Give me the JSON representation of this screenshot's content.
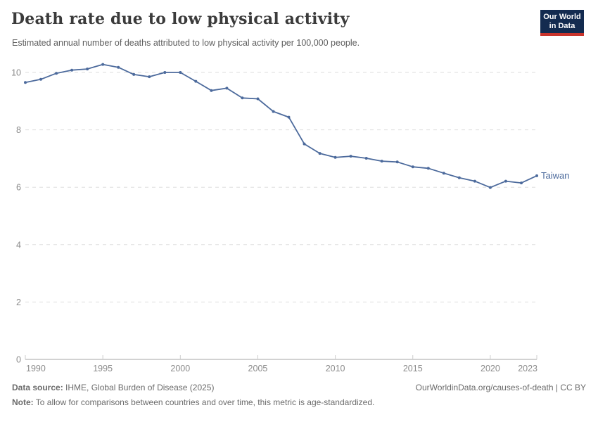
{
  "header": {
    "title": "Death rate due to low physical activity",
    "subtitle": "Estimated annual number of deaths attributed to low physical activity per 100,000 people.",
    "logo": {
      "line1": "Our World",
      "line2": "in Data"
    }
  },
  "chart_data": {
    "type": "line",
    "title": "Death rate due to low physical activity",
    "xlabel": "",
    "ylabel": "",
    "x": [
      1990,
      1991,
      1992,
      1993,
      1994,
      1995,
      1996,
      1997,
      1998,
      1999,
      2000,
      2001,
      2002,
      2003,
      2004,
      2005,
      2006,
      2007,
      2008,
      2009,
      2010,
      2011,
      2012,
      2013,
      2014,
      2015,
      2016,
      2017,
      2018,
      2019,
      2020,
      2021,
      2022,
      2023
    ],
    "series": [
      {
        "name": "Taiwan",
        "color": "#4C6A9C",
        "values": [
          9.65,
          9.76,
          9.97,
          10.08,
          10.12,
          10.28,
          10.18,
          9.93,
          9.85,
          10.0,
          10.0,
          9.69,
          9.37,
          9.45,
          9.11,
          9.08,
          8.64,
          8.44,
          7.51,
          7.18,
          7.04,
          7.08,
          7.01,
          6.91,
          6.88,
          6.71,
          6.66,
          6.49,
          6.33,
          6.21,
          5.99,
          6.21,
          6.15,
          6.4
        ]
      }
    ],
    "ylim": [
      0,
      10.6
    ],
    "yticks": [
      0,
      2,
      4,
      6,
      8,
      10
    ],
    "xticks": [
      1990,
      1995,
      2000,
      2005,
      2010,
      2015,
      2020,
      2023
    ],
    "grid": "horizontal-dashed",
    "legend_position": "end-of-line-label",
    "entity_label": "Taiwan"
  },
  "colors": {
    "line": "#4C6A9C",
    "entity_label": "#4C6A9C",
    "grid": "#dddddd",
    "axis": "#a5a5a5",
    "tick": "#cccccc",
    "axis_text": "#8b8b8b"
  },
  "footer": {
    "data_source_label": "Data source:",
    "data_source": " IHME, Global Burden of Disease (2025)",
    "note_label": "Note:",
    "note": " To allow for comparisons between countries and over time, this metric is age-standardized.",
    "credit": "OurWorldinData.org/causes-of-death | CC BY"
  }
}
